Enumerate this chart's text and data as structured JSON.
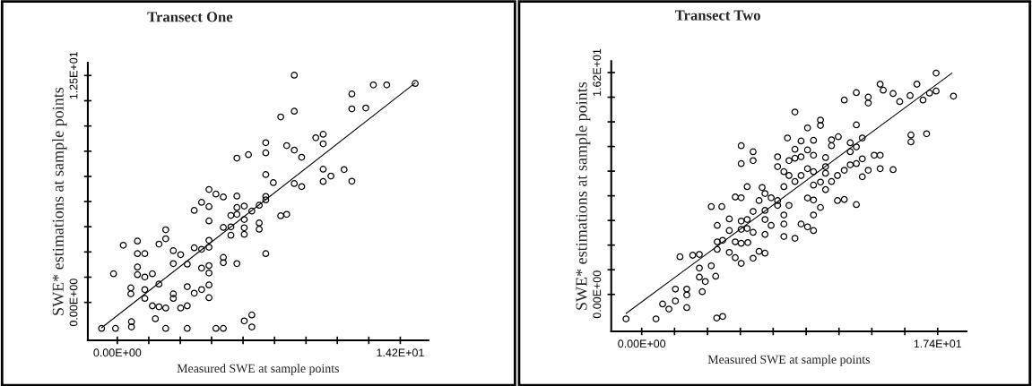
{
  "chart_data": [
    {
      "type": "scatter",
      "title": "Transect One",
      "xlabel": "Measured SWE at sample points",
      "ylabel": "SWE* estimations at sample points",
      "grid": false,
      "xlim": [
        -1.48,
        15.61
      ],
      "ylim": [
        -2.09,
        13.2
      ],
      "xticks": [
        {
          "value": 0,
          "label": "0.00E+00"
        },
        {
          "value": 1.58,
          "label": null
        },
        {
          "value": 3.16,
          "label": null
        },
        {
          "value": 4.73,
          "label": null
        },
        {
          "value": 6.31,
          "label": null
        },
        {
          "value": 7.89,
          "label": null
        },
        {
          "value": 9.47,
          "label": null
        },
        {
          "value": 11.04,
          "label": null
        },
        {
          "value": 12.62,
          "label": null
        },
        {
          "value": 14.2,
          "label": "1.42E+01"
        }
      ],
      "yticks": [
        {
          "value": 0,
          "label": "0.00E+00"
        },
        {
          "value": 1.39,
          "label": null
        },
        {
          "value": 2.78,
          "label": null
        },
        {
          "value": 4.17,
          "label": null
        },
        {
          "value": 5.56,
          "label": null
        },
        {
          "value": 6.94,
          "label": null
        },
        {
          "value": 8.33,
          "label": null
        },
        {
          "value": 9.72,
          "label": null
        },
        {
          "value": 11.11,
          "label": null
        },
        {
          "value": 12.5,
          "label": "1.25E+01"
        }
      ],
      "series": [
        {
          "marker": "circle",
          "color": "#000000",
          "x": [
            -0.79,
            -0.09,
            0.71,
            0.71,
            -0.19,
            0.3,
            0.68,
            0.68,
            1.01,
            1.01,
            1.38,
            1.01,
            1.01,
            1.38,
            1.76,
            1.38,
            1.38,
            1.76,
            2.09,
            2.43,
            1.91,
            2.43,
            2.09,
            2.09,
            2.43,
            2.43,
            2.81,
            3.18,
            2.81,
            2.81,
            2.81,
            3.18,
            3.51,
            3.51,
            3.51,
            3.51,
            3.86,
            3.86,
            3.86,
            4.23,
            4.23,
            4.23,
            4.23,
            4.6,
            4.6,
            4.6,
            4.6,
            4.6,
            4.6,
            4.6,
            4.6,
            4.6,
            4.95,
            5.32,
            5.32,
            5.32,
            5.32,
            4.95,
            5.32,
            5.7,
            5.7,
            5.7,
            6.0,
            6.0,
            6.0,
            6.0,
            6.0,
            6.37,
            6.37,
            6.37,
            6.37,
            6.37,
            6.75,
            6.75,
            6.58,
            6.75,
            7.12,
            7.12,
            7.12,
            7.45,
            7.45,
            7.45,
            7.45,
            7.45,
            7.45,
            7.83,
            8.2,
            8.2,
            8.5,
            8.5,
            8.88,
            8.88,
            8.88,
            8.88,
            9.25,
            9.25,
            9.96,
            10.33,
            10.33,
            10.33,
            10.33,
            10.72,
            11.38,
            11.77,
            11.77,
            11.77,
            12.47,
            12.85,
            13.52,
            14.95
          ],
          "values": [
            -1.43,
            -1.43,
            -1.06,
            -1.35,
            1.58,
            3.15,
            0.8,
            0.47,
            3.38,
            2.69,
            2.69,
            1.95,
            1.53,
            1.4,
            1.58,
            0.71,
            0.22,
            -0.19,
            -0.24,
            -0.31,
            -0.9,
            -1.43,
            1.01,
            3.21,
            4.0,
            3.51,
            2.85,
            2.63,
            2.14,
            0.47,
            0.22,
            -0.31,
            -0.19,
            2.11,
            0.87,
            -1.43,
            5.07,
            3.01,
            0.51,
            5.51,
            2.93,
            1.89,
            0.71,
            6.22,
            5.28,
            4.49,
            3.42,
            3.04,
            2.03,
            1.62,
            0.96,
            0.26,
            5.97,
            5.81,
            4.13,
            2.48,
            2.19,
            -1.43,
            -1.43,
            4.79,
            3.7,
            4.16,
            5.86,
            7.95,
            5.23,
            4.85,
            2.14,
            5.31,
            4.57,
            4.11,
            3.75,
            -1.02,
            -0.69,
            -1.35,
            8.14,
            5.03,
            5.35,
            4.38,
            4.03,
            8.8,
            8.24,
            7.04,
            5.84,
            5.65,
            2.69,
            6.6,
            10.22,
            4.77,
            4.85,
            8.64,
            12.52,
            10.53,
            8.39,
            6.55,
            8.0,
            6.38,
            9.07,
            9.26,
            8.74,
            7.34,
            6.66,
            6.96,
            7.32,
            6.68,
            11.48,
            10.66,
            10.71,
            11.98,
            11.98,
            12.06
          ]
        },
        {
          "type": "line",
          "color": "#000000",
          "x": [
            -0.79,
            14.95
          ],
          "values": [
            -1.4,
            12.09
          ]
        }
      ]
    },
    {
      "type": "scatter",
      "title": "Transect Two",
      "xlabel": "Measured SWE at sample points",
      "ylabel": "SWE* estimations at sample points",
      "grid": false,
      "xlim": [
        -1.79,
        19.1
      ],
      "ylim": [
        -2.7,
        17.03
      ],
      "xticks": [
        {
          "value": 0,
          "label": "0.00E+00"
        },
        {
          "value": 1.93,
          "label": null
        },
        {
          "value": 3.87,
          "label": null
        },
        {
          "value": 5.8,
          "label": null
        },
        {
          "value": 7.73,
          "label": null
        },
        {
          "value": 9.67,
          "label": null
        },
        {
          "value": 11.6,
          "label": null
        },
        {
          "value": 13.53,
          "label": null
        },
        {
          "value": 15.47,
          "label": null
        },
        {
          "value": 17.4,
          "label": "1.74E+01"
        }
      ],
      "yticks": [
        {
          "value": 0,
          "label": "0.00E+00"
        },
        {
          "value": 1.8,
          "label": null
        },
        {
          "value": 3.6,
          "label": null
        },
        {
          "value": 5.4,
          "label": null
        },
        {
          "value": 7.2,
          "label": null
        },
        {
          "value": 9.0,
          "label": null
        },
        {
          "value": 10.8,
          "label": null
        },
        {
          "value": 12.6,
          "label": null
        },
        {
          "value": 14.4,
          "label": null
        },
        {
          "value": 16.2,
          "label": "1.62E+01"
        }
      ],
      "series": [
        {
          "marker": "circle",
          "color": "#000000",
          "x": [
            -0.92,
            0.84,
            1.23,
            1.6,
            1.98,
            1.98,
            2.65,
            2.65,
            2.65,
            3.56,
            2.25,
            3.0,
            3.39,
            3.39,
            3.39,
            3.74,
            4.09,
            4.35,
            4.41,
            4.76,
            4.09,
            4.71,
            4.44,
            4.44,
            4.44,
            4.76,
            5.15,
            5.15,
            5.15,
            5.5,
            5.85,
            5.85,
            5.85,
            5.5,
            5.85,
            5.5,
            5.85,
            5.85,
            5.85,
            6.2,
            6.2,
            6.2,
            6.55,
            6.55,
            6.55,
            6.55,
            6.24,
            6.55,
            6.9,
            6.9,
            7.25,
            7.25,
            7.25,
            7.25,
            7.25,
            7.08,
            7.61,
            7.61,
            7.99,
            7.99,
            7.99,
            7.99,
            8.36,
            8.36,
            8.36,
            8.36,
            8.36,
            8.57,
            8.66,
            8.66,
            8.66,
            9.01,
            9.01,
            9.01,
            9.01,
            9.01,
            9.37,
            9.37,
            9.37,
            9.37,
            9.75,
            9.75,
            9.75,
            9.75,
            9.75,
            10.1,
            10.1,
            10.1,
            10.1,
            10.1,
            10.1,
            10.1,
            10.51,
            10.51,
            10.51,
            10.51,
            10.81,
            10.81,
            10.81,
            10.81,
            11.16,
            11.16,
            11.16,
            11.56,
            11.51,
            11.51,
            11.91,
            11.91,
            11.91,
            12.26,
            12.26,
            12.26,
            12.62,
            12.62,
            12.62,
            12.62,
            12.62,
            12.97,
            12.97,
            12.97,
            13.32,
            13.32,
            13.32,
            13.67,
            14.02,
            14.02,
            14.02,
            14.2,
            14.78,
            14.78,
            15.17,
            15.78,
            15.83,
            15.83,
            16.18,
            16.54,
            16.75,
            16.92,
            17.31,
            17.31,
            18.33
          ],
          "values": [
            -1.79,
            -1.79,
            -0.7,
            -1.07,
            -0.48,
            0.39,
            0.39,
            -0.04,
            -0.96,
            0.2,
            2.75,
            2.86,
            2.92,
            1.92,
            1.26,
            0.94,
            2.09,
            1.33,
            -1.72,
            -1.61,
            6.41,
            6.41,
            5.04,
            3.84,
            3.29,
            3.95,
            5.51,
            4.66,
            3.07,
            7.11,
            7.06,
            5.36,
            4.75,
            3.84,
            3.73,
            2.68,
            2.27,
            10.86,
            9.55,
            7.87,
            5.47,
            4.82,
            10.42,
            9.77,
            6.06,
            4.53,
            3.79,
            2.64,
            6.85,
            3.14,
            7.37,
            6.13,
            5.47,
            4.38,
            3.01,
            7.81,
            7.06,
            5.04,
            10.05,
            9.33,
            6.85,
            6.5,
            7.87,
            8.96,
            5.8,
            5.14,
            4.23,
            11.42,
            9.77,
            8.68,
            6.5,
            13.32,
            10.6,
            9.94,
            8.24,
            4.1,
            11.2,
            10.05,
            8.68,
            5.14,
            12.16,
            10.55,
            9.18,
            7.04,
            4.93,
            11.25,
            10.16,
            8.96,
            7.98,
            6.89,
            5.8,
            4.66,
            12.73,
            12.34,
            8.2,
            6.35,
            9.99,
            9.33,
            8.85,
            7.65,
            11.29,
            10.86,
            8.24,
            11.51,
            8.68,
            6.85,
            9.07,
            14.19,
            6.93,
            11.07,
            10.42,
            9.46,
            14.73,
            12.38,
            10.77,
            9.55,
            6.56,
            11.42,
            9.9,
            8.59,
            14.41,
            13.97,
            9.07,
            10.16,
            10.16,
            9.18,
            15.35,
            14.91,
            14.67,
            9.11,
            14.08,
            14.52,
            11.64,
            11.14,
            15.35,
            14.19,
            11.73,
            14.7,
            14.85,
            16.16,
            14.48
          ]
        },
        {
          "type": "line",
          "color": "#000000",
          "x": [
            -0.92,
            18.24
          ],
          "values": [
            -1.39,
            16.16
          ]
        }
      ]
    }
  ]
}
